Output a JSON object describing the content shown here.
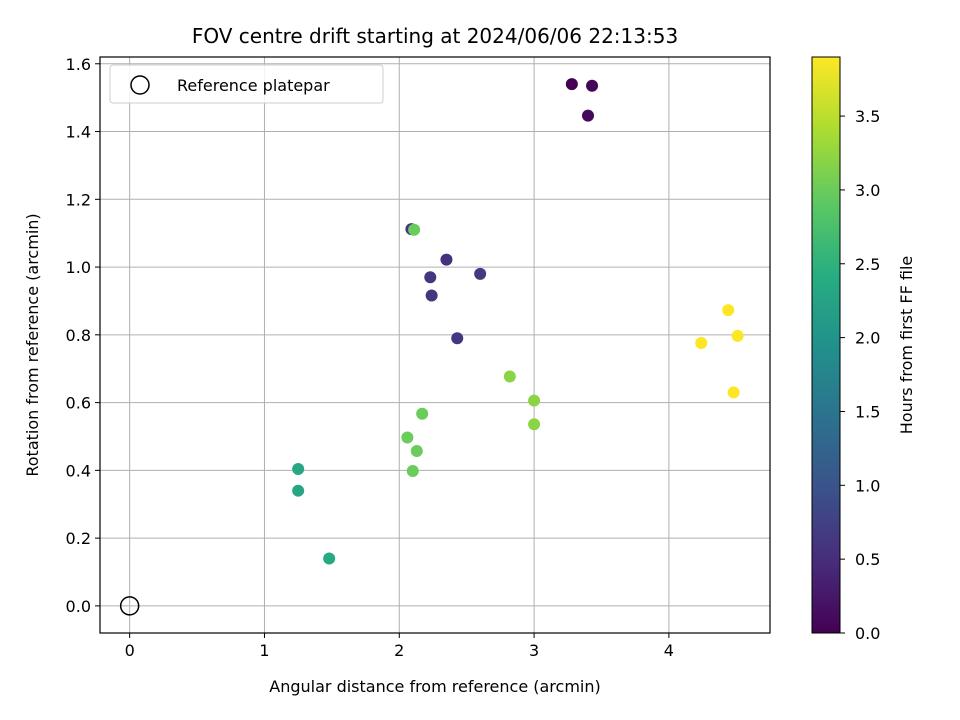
{
  "chart_data": {
    "type": "scatter",
    "title": "FOV centre drift starting at 2024/06/06 22:13:53",
    "xlabel": "Angular distance from reference (arcmin)",
    "ylabel": "Rotation from reference (arcmin)",
    "xlim": [
      -0.22,
      4.75
    ],
    "ylim": [
      -0.08,
      1.62
    ],
    "xticks": [
      0,
      1,
      2,
      3,
      4
    ],
    "xtick_labels": [
      "0",
      "1",
      "2",
      "3",
      "4"
    ],
    "yticks": [
      0.0,
      0.2,
      0.4,
      0.6,
      0.8,
      1.0,
      1.2,
      1.4,
      1.6
    ],
    "ytick_labels": [
      "0.0",
      "0.2",
      "0.4",
      "0.6",
      "0.8",
      "1.0",
      "1.2",
      "1.4",
      "1.6"
    ],
    "grid": true,
    "legend": {
      "placement": "top-left",
      "entries": [
        "Reference platepar"
      ]
    },
    "reference_point": {
      "x": 0.0,
      "y": 0.0,
      "label": "Reference platepar"
    },
    "colorbar": {
      "label": "Hours from first FF file",
      "colormap": "viridis",
      "range": [
        0.0,
        3.9
      ],
      "ticks": [
        0.0,
        0.5,
        1.0,
        1.5,
        2.0,
        2.5,
        3.0,
        3.5
      ],
      "tick_labels": [
        "0.0",
        "0.5",
        "1.0",
        "1.5",
        "2.0",
        "2.5",
        "3.0",
        "3.5"
      ]
    },
    "points": [
      {
        "x": 3.28,
        "y": 1.54,
        "hours": 0.0
      },
      {
        "x": 3.43,
        "y": 1.535,
        "hours": 0.05
      },
      {
        "x": 3.4,
        "y": 1.447,
        "hours": 0.1
      },
      {
        "x": 2.09,
        "y": 1.112,
        "hours": 0.6
      },
      {
        "x": 2.35,
        "y": 1.022,
        "hours": 0.55
      },
      {
        "x": 2.23,
        "y": 0.97,
        "hours": 0.6
      },
      {
        "x": 2.6,
        "y": 0.98,
        "hours": 0.65
      },
      {
        "x": 2.24,
        "y": 0.916,
        "hours": 0.6
      },
      {
        "x": 2.43,
        "y": 0.79,
        "hours": 0.6
      },
      {
        "x": 1.25,
        "y": 0.404,
        "hours": 2.3
      },
      {
        "x": 1.25,
        "y": 0.34,
        "hours": 2.3
      },
      {
        "x": 1.48,
        "y": 0.14,
        "hours": 2.35
      },
      {
        "x": 2.11,
        "y": 1.11,
        "hours": 3.0
      },
      {
        "x": 2.17,
        "y": 0.567,
        "hours": 3.0
      },
      {
        "x": 2.06,
        "y": 0.497,
        "hours": 3.0
      },
      {
        "x": 2.13,
        "y": 0.457,
        "hours": 3.0
      },
      {
        "x": 2.1,
        "y": 0.398,
        "hours": 3.0
      },
      {
        "x": 2.82,
        "y": 0.677,
        "hours": 3.2
      },
      {
        "x": 3.0,
        "y": 0.606,
        "hours": 3.2
      },
      {
        "x": 3.0,
        "y": 0.536,
        "hours": 3.2
      },
      {
        "x": 4.44,
        "y": 0.873,
        "hours": 3.9
      },
      {
        "x": 4.24,
        "y": 0.776,
        "hours": 3.9
      },
      {
        "x": 4.51,
        "y": 0.797,
        "hours": 3.9
      },
      {
        "x": 4.48,
        "y": 0.63,
        "hours": 3.9
      }
    ]
  }
}
